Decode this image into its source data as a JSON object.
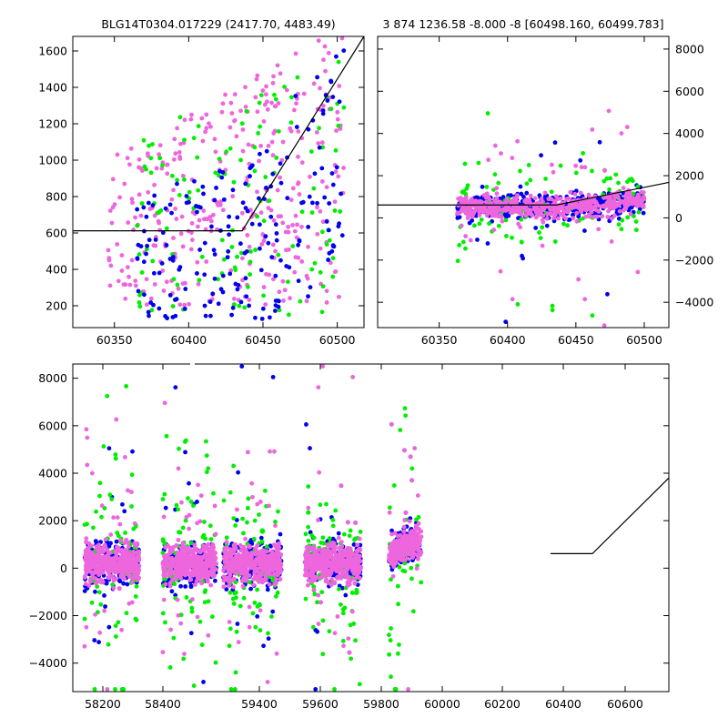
{
  "figure": {
    "background": "#ffffff",
    "colors": {
      "blue": "#0000ee",
      "green": "#00ee00",
      "magenta": "#ee66dd",
      "line": "#000000"
    }
  },
  "chart_data": [
    {
      "type": "scatter",
      "title": "BLG14T0304.017229 (2417.70, 4483.49)",
      "xlabel": "",
      "ylabel": "",
      "xlim": [
        60322,
        60518
      ],
      "ylim": [
        80,
        1680
      ],
      "xticks": [
        60350,
        60400,
        60450,
        60500
      ],
      "yticks": [
        200,
        400,
        600,
        800,
        1000,
        1200,
        1400,
        1600
      ],
      "model_line": {
        "x": [
          60322,
          60436,
          60518
        ],
        "y": [
          612,
          612,
          1680
        ]
      },
      "series": [
        {
          "color": "#ee66dd",
          "n": 340,
          "x_range": [
            60345,
            60505
          ],
          "model": "broad_upper"
        },
        {
          "color": "#00ee00",
          "n": 130,
          "x_range": [
            60365,
            60505
          ],
          "model": "broad"
        },
        {
          "color": "#0000ee",
          "n": 190,
          "x_range": [
            60365,
            60505
          ],
          "model": "broad_lower"
        }
      ]
    },
    {
      "type": "scatter",
      "title": "3 874 1236.58 -8.000 -8 [60498.160, 60499.783]",
      "xlabel": "",
      "ylabel": "",
      "xlim": [
        60305,
        60518
      ],
      "ylim": [
        -5200,
        8600
      ],
      "y_axis_side": "right",
      "xticks": [
        60350,
        60400,
        60450,
        60500
      ],
      "yticks": [
        -4000,
        -2000,
        0,
        2000,
        4000,
        6000,
        8000
      ],
      "model_line": {
        "x": [
          60305,
          60436,
          60518
        ],
        "y": [
          612,
          612,
          1680
        ]
      },
      "series": [
        {
          "color": "#0000ee",
          "n": 380,
          "x_range": [
            60363,
            60500
          ],
          "spread": 300,
          "outliers": 0.04
        },
        {
          "color": "#00ee00",
          "n": 100,
          "x_range": [
            60363,
            60500
          ],
          "spread": 900,
          "outliers": 0.35
        },
        {
          "color": "#ee66dd",
          "n": 520,
          "x_range": [
            60363,
            60500
          ],
          "spread": 250,
          "outliers": 0.05
        }
      ]
    },
    {
      "type": "scatter",
      "title": "",
      "xlabel": "",
      "ylabel": "",
      "xlim": [
        58125,
        60680
      ],
      "ylim": [
        -5200,
        8600
      ],
      "broken_axis_gap_at": 58500,
      "xticks": [
        58200,
        58400,
        59400,
        59600,
        59800,
        60000,
        60200,
        60400,
        60600
      ],
      "yticks": [
        -4000,
        -2000,
        0,
        2000,
        4000,
        6000,
        8000
      ],
      "model_line": {
        "x": [
          60300,
          60436,
          60680
        ],
        "y": [
          612,
          612,
          3800
        ]
      },
      "seasons": [
        {
          "x_range": [
            58175,
            58410
          ],
          "x_display": [
            58175,
            58410
          ]
        },
        {
          "x_range": [
            59260,
            59500
          ],
          "x_display": [
            58510,
            58740
          ]
        },
        {
          "x_range": [
            59620,
            59870
          ],
          "x_display": [
            58770,
            59020
          ]
        },
        {
          "x_range": [
            59990,
            60230
          ],
          "x_display": [
            59120,
            59360
          ]
        },
        {
          "x_range": [
            60360,
            60500
          ],
          "x_display": [
            59480,
            59620
          ]
        }
      ],
      "series": [
        {
          "color": "#0000ee",
          "n_per_season": 230,
          "spread": 450,
          "outliers": 0.05
        },
        {
          "color": "#00ee00",
          "n_per_season": 90,
          "spread": 1100,
          "outliers": 0.4
        },
        {
          "color": "#ee66dd",
          "n_per_season": 420,
          "spread": 380,
          "outliers": 0.05
        }
      ]
    }
  ]
}
